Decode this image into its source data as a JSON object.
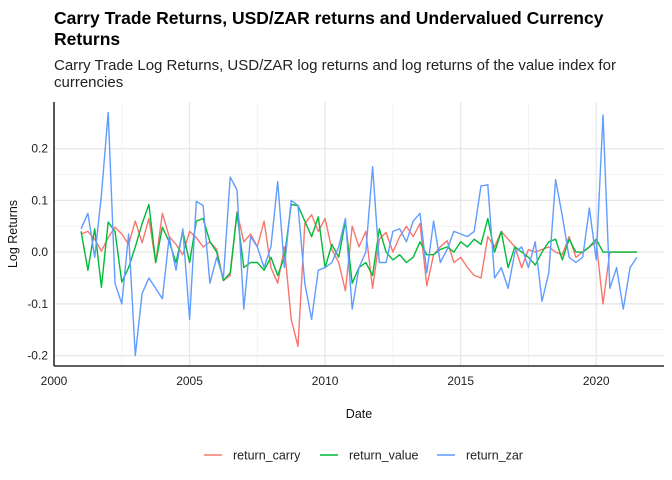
{
  "chart_data": {
    "type": "line",
    "title": "Carry Trade Returns, USD/ZAR returns and Undervalued Currency Returns",
    "subtitle": "Carry Trade Log Returns, USD/ZAR log returns and log returns of the value index for currencies",
    "xlabel": "Date",
    "ylabel": "Log Returns",
    "xlim": [
      2000,
      2022.5
    ],
    "ylim": [
      -0.22,
      0.29
    ],
    "x_ticks": [
      2000,
      2005,
      2010,
      2015,
      2020
    ],
    "y_ticks": [
      -0.2,
      -0.1,
      0.0,
      0.1,
      0.2
    ],
    "x_tick_labels": [
      "2000",
      "2005",
      "2010",
      "2015",
      "2020"
    ],
    "y_tick_labels": [
      "-0.2",
      "-0.1",
      "0.0",
      "0.1",
      "0.2"
    ],
    "grid": true,
    "legend_position": "bottom",
    "series": [
      {
        "name": "return_carry",
        "color": "#F8766D",
        "points": [
          [
            2001.0,
            0.035
          ],
          [
            2001.25,
            0.04
          ],
          [
            2001.5,
            0.025
          ],
          [
            2001.75,
            0.002
          ],
          [
            2002.0,
            0.028
          ],
          [
            2002.25,
            0.048
          ],
          [
            2002.5,
            0.035
          ],
          [
            2002.75,
            0.015
          ],
          [
            2003.0,
            0.06
          ],
          [
            2003.25,
            0.018
          ],
          [
            2003.5,
            0.065
          ],
          [
            2003.75,
            -0.02
          ],
          [
            2004.0,
            0.075
          ],
          [
            2004.25,
            0.03
          ],
          [
            2004.5,
            0.015
          ],
          [
            2004.75,
            -0.005
          ],
          [
            2005.0,
            0.04
          ],
          [
            2005.25,
            0.028
          ],
          [
            2005.5,
            0.01
          ],
          [
            2005.75,
            0.02
          ],
          [
            2006.0,
            0.005
          ],
          [
            2006.25,
            -0.055
          ],
          [
            2006.5,
            -0.045
          ],
          [
            2006.75,
            0.078
          ],
          [
            2007.0,
            0.02
          ],
          [
            2007.25,
            0.035
          ],
          [
            2007.5,
            0.01
          ],
          [
            2007.75,
            0.06
          ],
          [
            2008.0,
            -0.03
          ],
          [
            2008.25,
            -0.06
          ],
          [
            2008.5,
            0.01
          ],
          [
            2008.75,
            -0.13
          ],
          [
            2009.0,
            -0.182
          ],
          [
            2009.25,
            0.055
          ],
          [
            2009.5,
            0.072
          ],
          [
            2009.75,
            0.04
          ],
          [
            2010.0,
            0.065
          ],
          [
            2010.25,
            0.005
          ],
          [
            2010.5,
            -0.02
          ],
          [
            2010.75,
            -0.075
          ],
          [
            2011.0,
            0.05
          ],
          [
            2011.25,
            0.01
          ],
          [
            2011.5,
            0.04
          ],
          [
            2011.75,
            -0.07
          ],
          [
            2012.0,
            0.025
          ],
          [
            2012.25,
            0.038
          ],
          [
            2012.5,
            0.0
          ],
          [
            2012.75,
            0.03
          ],
          [
            2013.0,
            0.05
          ],
          [
            2013.25,
            0.03
          ],
          [
            2013.5,
            0.055
          ],
          [
            2013.75,
            -0.065
          ],
          [
            2014.0,
            -0.005
          ],
          [
            2014.25,
            0.01
          ],
          [
            2014.5,
            0.022
          ],
          [
            2014.75,
            -0.02
          ],
          [
            2015.0,
            -0.01
          ],
          [
            2015.25,
            -0.03
          ],
          [
            2015.5,
            -0.045
          ],
          [
            2015.75,
            -0.05
          ],
          [
            2016.0,
            0.03
          ],
          [
            2016.25,
            0.01
          ],
          [
            2016.5,
            0.04
          ],
          [
            2016.75,
            0.025
          ],
          [
            2017.0,
            0.01
          ],
          [
            2017.25,
            -0.03
          ],
          [
            2017.5,
            0.005
          ],
          [
            2017.75,
            0.0
          ],
          [
            2018.0,
            0.005
          ],
          [
            2018.25,
            0.01
          ],
          [
            2018.5,
            0.0
          ],
          [
            2018.75,
            -0.005
          ],
          [
            2019.0,
            0.03
          ],
          [
            2019.25,
            -0.01
          ],
          [
            2019.5,
            0.0
          ],
          [
            2019.75,
            0.01
          ],
          [
            2020.0,
            0.02
          ],
          [
            2020.25,
            -0.1
          ],
          [
            2020.5,
            0.0
          ],
          [
            2020.75,
            0.0
          ],
          [
            2021.0,
            0.0
          ],
          [
            2021.25,
            0.0
          ],
          [
            2021.5,
            0.0
          ]
        ]
      },
      {
        "name": "return_value",
        "color": "#00BA38",
        "points": [
          [
            2001.0,
            0.04
          ],
          [
            2001.25,
            -0.035
          ],
          [
            2001.5,
            0.045
          ],
          [
            2001.75,
            -0.068
          ],
          [
            2002.0,
            0.058
          ],
          [
            2002.25,
            0.04
          ],
          [
            2002.5,
            -0.058
          ],
          [
            2002.75,
            -0.03
          ],
          [
            2003.0,
            0.01
          ],
          [
            2003.25,
            0.055
          ],
          [
            2003.5,
            0.092
          ],
          [
            2003.75,
            -0.02
          ],
          [
            2004.0,
            0.048
          ],
          [
            2004.25,
            0.02
          ],
          [
            2004.5,
            -0.02
          ],
          [
            2004.75,
            0.04
          ],
          [
            2005.0,
            -0.02
          ],
          [
            2005.25,
            0.06
          ],
          [
            2005.5,
            0.065
          ],
          [
            2005.75,
            0.02
          ],
          [
            2006.0,
            0.0
          ],
          [
            2006.25,
            -0.055
          ],
          [
            2006.5,
            -0.04
          ],
          [
            2006.75,
            0.075
          ],
          [
            2007.0,
            -0.03
          ],
          [
            2007.25,
            -0.02
          ],
          [
            2007.5,
            -0.02
          ],
          [
            2007.75,
            -0.035
          ],
          [
            2008.0,
            -0.01
          ],
          [
            2008.25,
            -0.045
          ],
          [
            2008.5,
            -0.01
          ],
          [
            2008.75,
            0.092
          ],
          [
            2009.0,
            0.09
          ],
          [
            2009.25,
            0.06
          ],
          [
            2009.5,
            0.03
          ],
          [
            2009.75,
            0.068
          ],
          [
            2010.0,
            -0.03
          ],
          [
            2010.25,
            0.015
          ],
          [
            2010.5,
            -0.01
          ],
          [
            2010.75,
            0.06
          ],
          [
            2011.0,
            -0.06
          ],
          [
            2011.25,
            -0.03
          ],
          [
            2011.5,
            -0.02
          ],
          [
            2011.75,
            -0.045
          ],
          [
            2012.0,
            0.045
          ],
          [
            2012.25,
            0.0
          ],
          [
            2012.5,
            -0.015
          ],
          [
            2012.75,
            -0.005
          ],
          [
            2013.0,
            -0.02
          ],
          [
            2013.25,
            -0.01
          ],
          [
            2013.5,
            0.02
          ],
          [
            2013.75,
            -0.005
          ],
          [
            2014.0,
            -0.005
          ],
          [
            2014.25,
            0.005
          ],
          [
            2014.5,
            0.01
          ],
          [
            2014.75,
            0.0
          ],
          [
            2015.0,
            0.02
          ],
          [
            2015.25,
            0.01
          ],
          [
            2015.5,
            0.025
          ],
          [
            2015.75,
            0.015
          ],
          [
            2016.0,
            0.065
          ],
          [
            2016.25,
            0.0
          ],
          [
            2016.5,
            0.04
          ],
          [
            2016.75,
            -0.03
          ],
          [
            2017.0,
            0.01
          ],
          [
            2017.25,
            0.0
          ],
          [
            2017.5,
            -0.01
          ],
          [
            2017.75,
            -0.025
          ],
          [
            2018.0,
            0.0
          ],
          [
            2018.25,
            0.02
          ],
          [
            2018.5,
            0.025
          ],
          [
            2018.75,
            -0.015
          ],
          [
            2019.0,
            0.025
          ],
          [
            2019.25,
            0.0
          ],
          [
            2019.5,
            0.0
          ],
          [
            2019.75,
            0.01
          ],
          [
            2020.0,
            0.025
          ],
          [
            2020.25,
            0.0
          ],
          [
            2020.5,
            0.0
          ],
          [
            2020.75,
            0.0
          ],
          [
            2021.0,
            0.0
          ],
          [
            2021.25,
            0.0
          ],
          [
            2021.5,
            0.0
          ]
        ]
      },
      {
        "name": "return_zar",
        "color": "#619CFF",
        "points": [
          [
            2001.0,
            0.045
          ],
          [
            2001.25,
            0.075
          ],
          [
            2001.5,
            -0.01
          ],
          [
            2001.75,
            0.11
          ],
          [
            2002.0,
            0.27
          ],
          [
            2002.25,
            -0.06
          ],
          [
            2002.5,
            -0.1
          ],
          [
            2002.75,
            0.035
          ],
          [
            2003.0,
            -0.2
          ],
          [
            2003.25,
            -0.08
          ],
          [
            2003.5,
            -0.05
          ],
          [
            2003.75,
            -0.07
          ],
          [
            2004.0,
            -0.09
          ],
          [
            2004.25,
            0.03
          ],
          [
            2004.5,
            -0.035
          ],
          [
            2004.75,
            0.045
          ],
          [
            2005.0,
            -0.13
          ],
          [
            2005.25,
            0.098
          ],
          [
            2005.5,
            0.09
          ],
          [
            2005.75,
            -0.06
          ],
          [
            2006.0,
            -0.01
          ],
          [
            2006.25,
            -0.05
          ],
          [
            2006.5,
            0.145
          ],
          [
            2006.75,
            0.12
          ],
          [
            2007.0,
            -0.11
          ],
          [
            2007.25,
            0.03
          ],
          [
            2007.5,
            0.01
          ],
          [
            2007.75,
            -0.03
          ],
          [
            2008.0,
            0.01
          ],
          [
            2008.25,
            0.136
          ],
          [
            2008.5,
            -0.03
          ],
          [
            2008.75,
            0.1
          ],
          [
            2009.0,
            0.09
          ],
          [
            2009.25,
            -0.06
          ],
          [
            2009.5,
            -0.13
          ],
          [
            2009.75,
            -0.035
          ],
          [
            2010.0,
            -0.03
          ],
          [
            2010.25,
            -0.02
          ],
          [
            2010.5,
            0.01
          ],
          [
            2010.75,
            0.065
          ],
          [
            2011.0,
            -0.11
          ],
          [
            2011.25,
            -0.03
          ],
          [
            2011.5,
            0.0
          ],
          [
            2011.75,
            0.165
          ],
          [
            2012.0,
            -0.02
          ],
          [
            2012.25,
            -0.02
          ],
          [
            2012.5,
            0.04
          ],
          [
            2012.75,
            0.045
          ],
          [
            2013.0,
            0.02
          ],
          [
            2013.25,
            0.06
          ],
          [
            2013.5,
            0.075
          ],
          [
            2013.75,
            -0.04
          ],
          [
            2014.0,
            0.06
          ],
          [
            2014.25,
            -0.02
          ],
          [
            2014.5,
            0.005
          ],
          [
            2014.75,
            0.04
          ],
          [
            2015.0,
            0.035
          ],
          [
            2015.25,
            0.03
          ],
          [
            2015.5,
            0.04
          ],
          [
            2015.75,
            0.128
          ],
          [
            2016.0,
            0.13
          ],
          [
            2016.25,
            -0.05
          ],
          [
            2016.5,
            -0.03
          ],
          [
            2016.75,
            -0.07
          ],
          [
            2017.0,
            0.0
          ],
          [
            2017.25,
            0.01
          ],
          [
            2017.5,
            -0.03
          ],
          [
            2017.75,
            0.02
          ],
          [
            2018.0,
            -0.095
          ],
          [
            2018.25,
            -0.04
          ],
          [
            2018.5,
            0.14
          ],
          [
            2018.75,
            0.07
          ],
          [
            2019.0,
            -0.01
          ],
          [
            2019.25,
            -0.02
          ],
          [
            2019.5,
            -0.01
          ],
          [
            2019.75,
            0.085
          ],
          [
            2020.0,
            -0.015
          ],
          [
            2020.25,
            0.265
          ],
          [
            2020.5,
            -0.07
          ],
          [
            2020.75,
            -0.03
          ],
          [
            2021.0,
            -0.11
          ],
          [
            2021.25,
            -0.03
          ],
          [
            2021.5,
            -0.01
          ]
        ]
      }
    ]
  }
}
